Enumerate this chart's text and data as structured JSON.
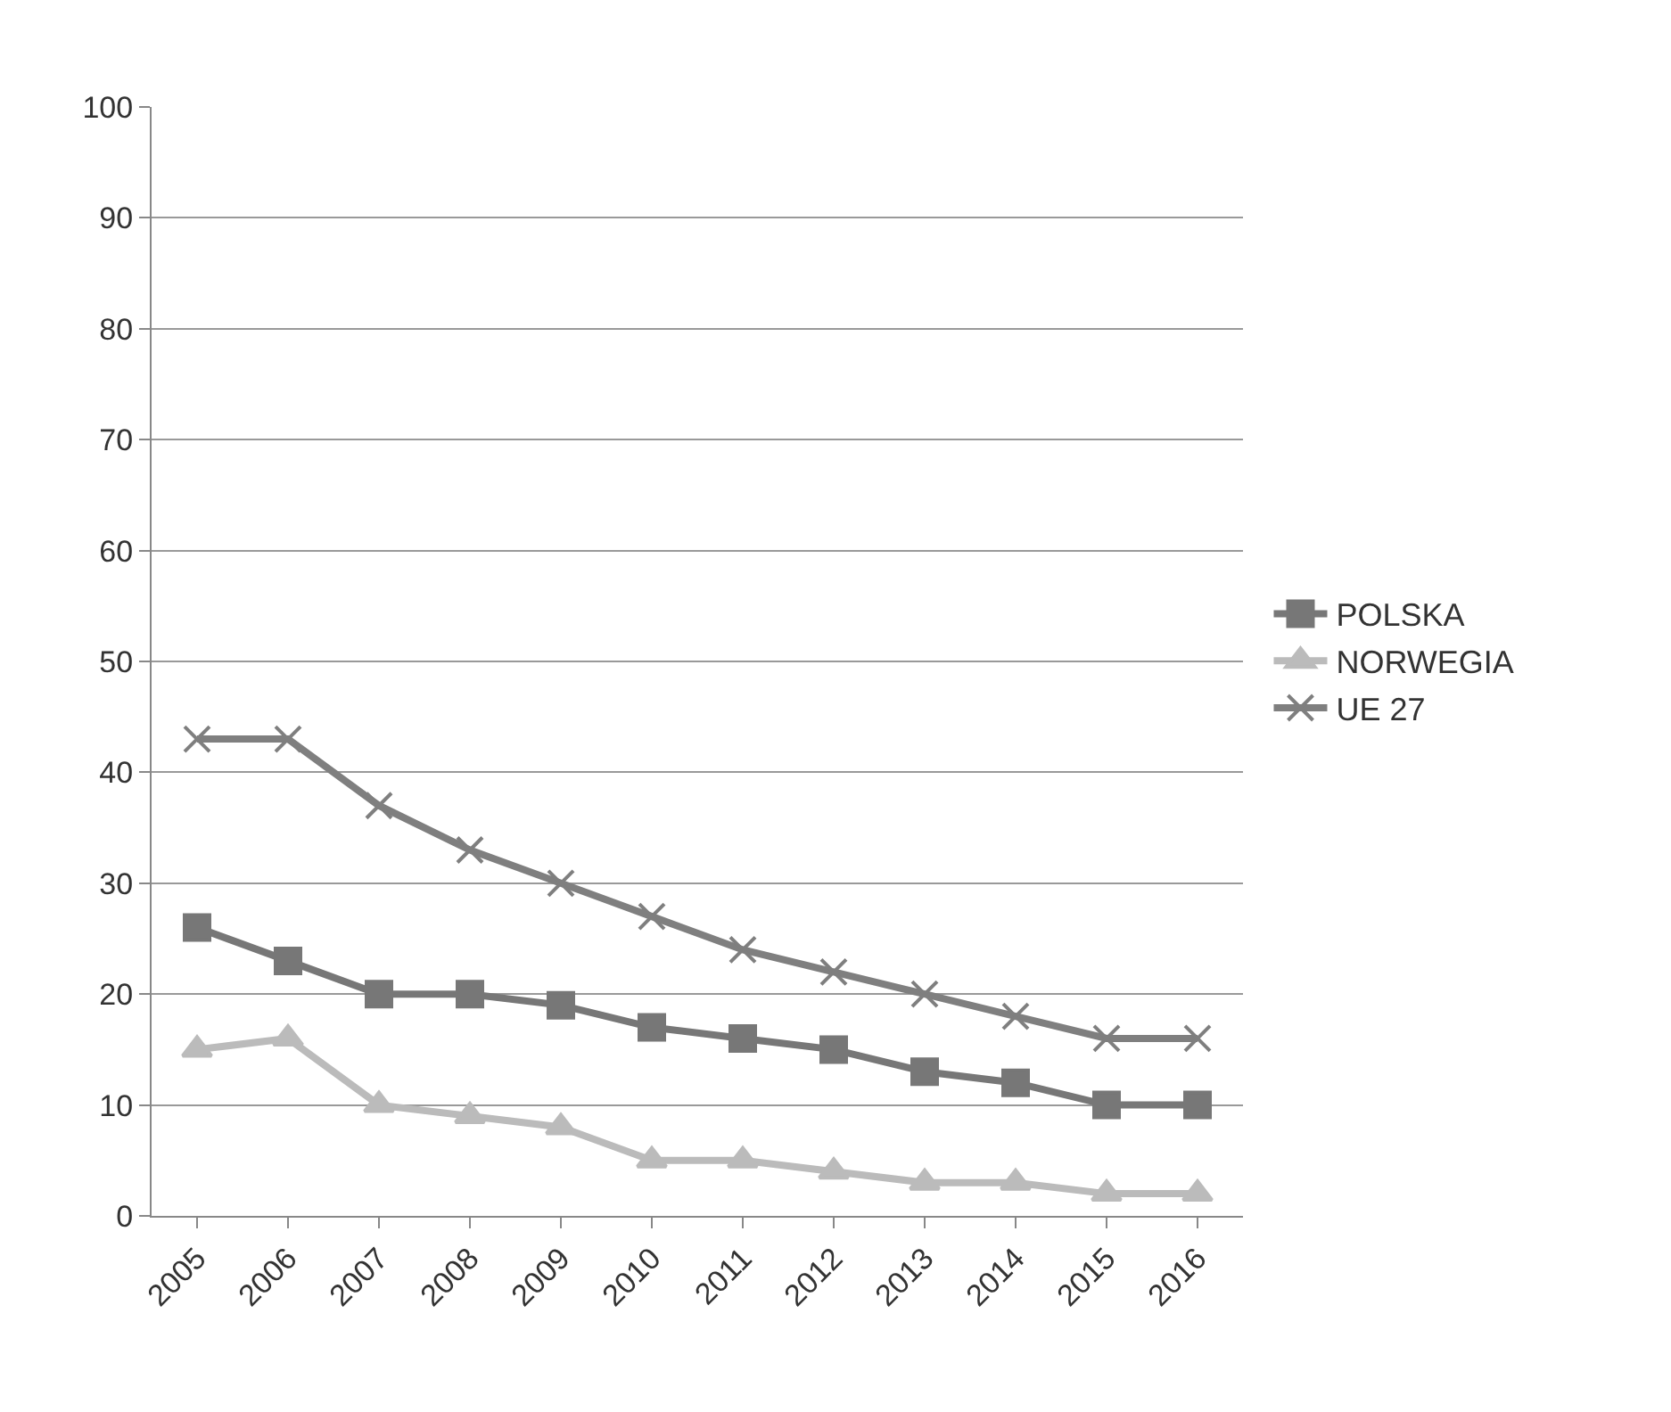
{
  "chart_data": {
    "type": "line",
    "categories": [
      "2005",
      "2006",
      "2007",
      "2008",
      "2009",
      "2010",
      "2011",
      "2012",
      "2013",
      "2014",
      "2015",
      "2016"
    ],
    "series": [
      {
        "name": "POLSKA",
        "color": "#777777",
        "marker": "square",
        "values": [
          26,
          23,
          20,
          20,
          19,
          17,
          16,
          15,
          13,
          12,
          10,
          10
        ]
      },
      {
        "name": "NORWEGIA",
        "color": "#bbbbbb",
        "marker": "triangle",
        "values": [
          15,
          16,
          10,
          9,
          8,
          5,
          5,
          4,
          3,
          3,
          2,
          2
        ]
      },
      {
        "name": "UE 27",
        "color": "#7f7f7f",
        "marker": "cross",
        "values": [
          43,
          43,
          37,
          33,
          30,
          27,
          24,
          22,
          20,
          18,
          16,
          16
        ]
      }
    ],
    "ylim": [
      0,
      100
    ],
    "yticks": [
      0,
      10,
      20,
      30,
      40,
      50,
      60,
      70,
      80,
      90,
      100
    ],
    "grid": "y",
    "legend": "right"
  }
}
